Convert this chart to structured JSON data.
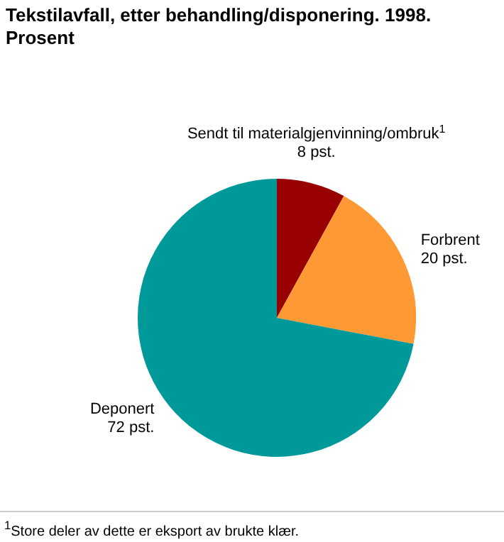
{
  "chart_data": {
    "type": "pie",
    "title": "Tekstilavfall, etter behandling/disponering. 1998. Prosent",
    "categories": [
      "Sendt til materialgjenvinning/ombruk$^{1}$",
      "Forbrent",
      "Deponert"
    ],
    "values": [
      8,
      20,
      72
    ],
    "colors": [
      "#990000",
      "#ff9933",
      "#009999"
    ],
    "value_labels": [
      "8 pst.",
      "20 pst.",
      "72 pst."
    ],
    "annotations": [
      "$^{1}$Store deler av dette er eksport av brukte klær."
    ]
  }
}
